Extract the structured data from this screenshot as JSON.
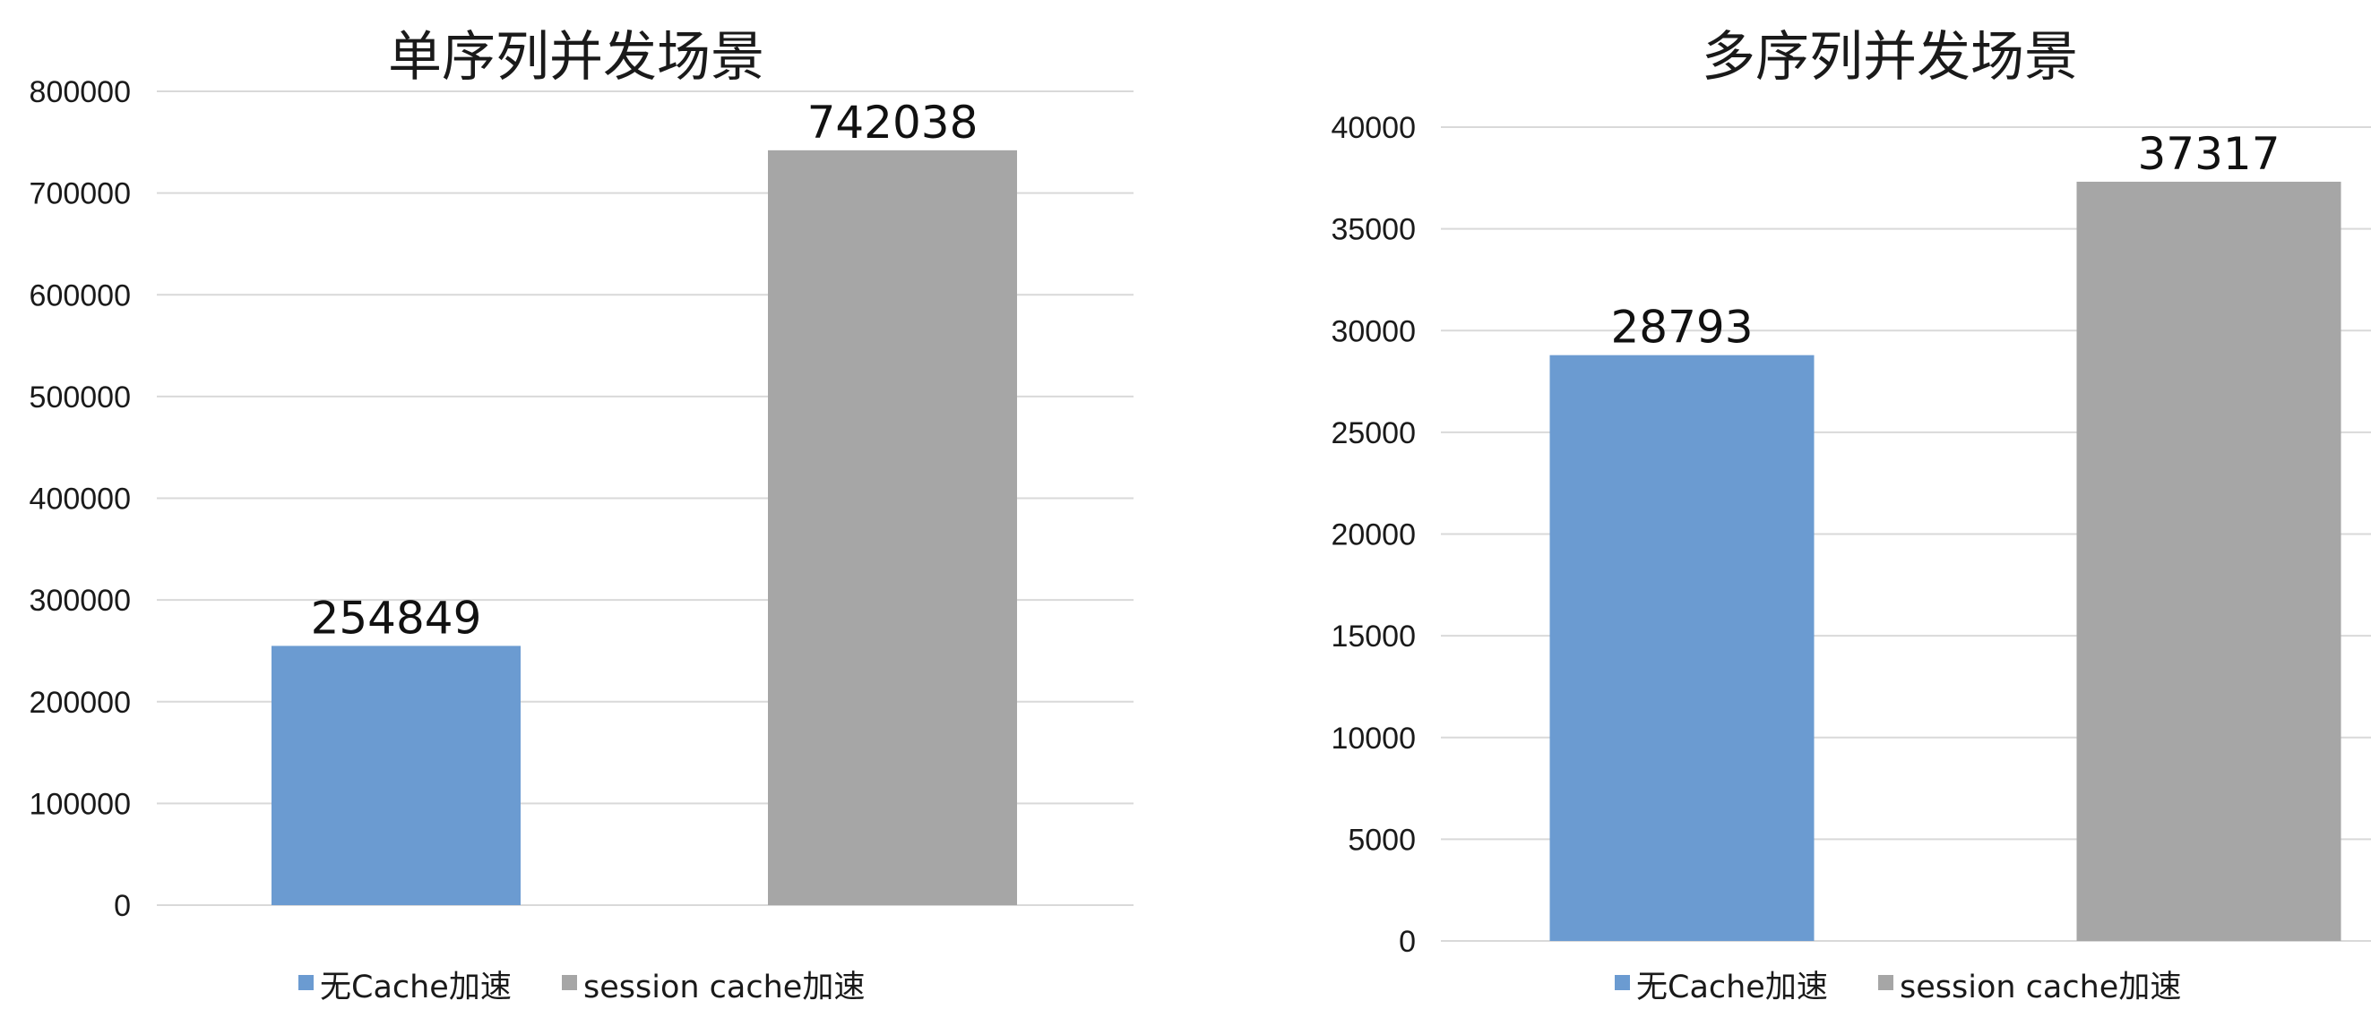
{
  "chart_data": [
    {
      "type": "bar",
      "title": "单序列并发场景",
      "categories": [
        "无Cache加速",
        "session cache加速"
      ],
      "values": [
        254849,
        742038
      ],
      "data_labels": [
        "254849",
        "742038"
      ],
      "ylim": [
        0,
        800000
      ],
      "y_ticks": [
        "0",
        "100000",
        "200000",
        "300000",
        "400000",
        "500000",
        "600000",
        "700000",
        "800000"
      ],
      "grid": true,
      "legend": "bottom",
      "colors": [
        "#6b9bd1",
        "#a6a6a6"
      ]
    },
    {
      "type": "bar",
      "title": "多序列并发场景",
      "categories": [
        "无Cache加速",
        "session cache加速"
      ],
      "values": [
        28793,
        37317
      ],
      "data_labels": [
        "28793",
        "37317"
      ],
      "ylim": [
        0,
        40000
      ],
      "y_ticks": [
        "0",
        "5000",
        "10000",
        "15000",
        "20000",
        "25000",
        "30000",
        "35000",
        "40000"
      ],
      "grid": true,
      "legend": "bottom",
      "colors": [
        "#6b9bd1",
        "#a6a6a6"
      ]
    }
  ]
}
